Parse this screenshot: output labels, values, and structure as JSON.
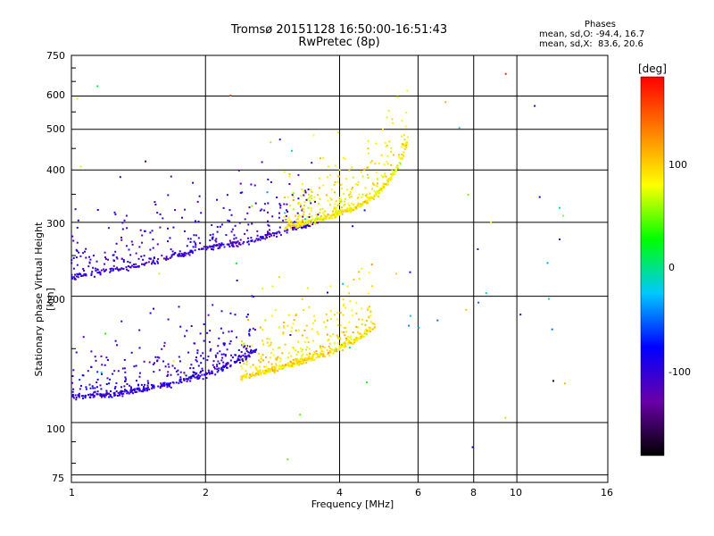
{
  "chart_data": {
    "type": "scatter",
    "title": "Tromsø 20151128 16:50:00-16:51:43",
    "subtitle": "RwPretec (8p)",
    "xlabel": "Frequency [MHz]",
    "ylabel": "Stationary phase Virtual Height [km]",
    "x_scale": "log",
    "y_scale": "log",
    "xlim": [
      1,
      16
    ],
    "ylim": [
      72,
      750
    ],
    "x_ticks": [
      "1",
      "2",
      "4",
      "6",
      "8",
      "10",
      "16"
    ],
    "y_ticks": [
      "75",
      "100",
      "200",
      "300",
      "400",
      "500",
      "600",
      "750"
    ],
    "grid": true,
    "stats": {
      "heading": "Phases",
      "line1": "mean, sd,O: -94.4, 16.7",
      "line2": "mean, sd,X:  83.6, 20.6"
    },
    "colorbar": {
      "unit": "[deg]",
      "ticks": [
        "100",
        "0",
        "-100"
      ],
      "range": [
        -180,
        180
      ],
      "colors": [
        "#000000",
        "#6a00a8",
        "#0000ff",
        "#00c8ff",
        "#00ff00",
        "#ffff00",
        "#ff8000",
        "#ff0000"
      ]
    },
    "traces": [
      {
        "name": "lower O-trace",
        "x": [
          1.0,
          1.2,
          1.4,
          1.7,
          2.0,
          2.3,
          2.6
        ],
        "y": [
          115,
          116,
          119,
          124,
          130,
          138,
          148
        ],
        "phase": -100
      },
      {
        "name": "lower X-trace",
        "x": [
          2.4,
          2.8,
          3.3,
          3.9,
          4.4,
          4.8
        ],
        "y": [
          128,
          133,
          140,
          148,
          158,
          170
        ],
        "phase": 90
      },
      {
        "name": "upper O-trace",
        "x": [
          1.0,
          1.3,
          1.6,
          2.0,
          2.5,
          3.0,
          3.6
        ],
        "y": [
          222,
          232,
          245,
          260,
          270,
          285,
          300
        ],
        "phase": -105
      },
      {
        "name": "upper X-trace",
        "x": [
          3.0,
          3.6,
          4.2,
          4.8,
          5.2,
          5.5,
          5.7
        ],
        "y": [
          290,
          305,
          320,
          345,
          380,
          420,
          470
        ],
        "phase": 85
      }
    ]
  }
}
